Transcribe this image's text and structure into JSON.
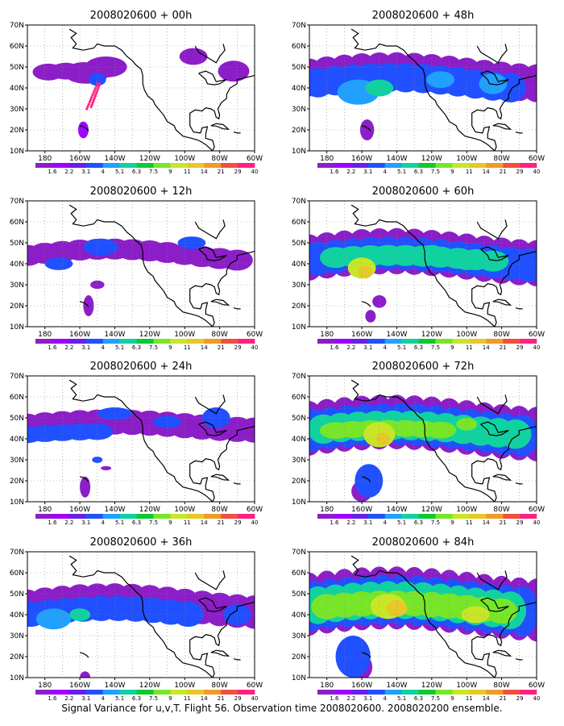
{
  "figure": {
    "caption": "Signal Variance for u,v,T. Flight 56. Observation time 2008020600. 2008020200 ensemble."
  },
  "colorbar": {
    "levels": [
      "1.6",
      "2.2",
      "3.1",
      "4",
      "5.1",
      "6.3",
      "7.5",
      "9",
      "11",
      "14",
      "21",
      "29",
      "40"
    ],
    "colors": [
      "#8c1ec8",
      "#a000ff",
      "#6a1ee6",
      "#2050ff",
      "#20a0ff",
      "#10d2a0",
      "#10c830",
      "#78e628",
      "#c8e628",
      "#e6c828",
      "#f09a28",
      "#f05040",
      "#ff2080"
    ]
  },
  "axes": {
    "lat_labels": [
      "70N",
      "60N",
      "50N",
      "40N",
      "30N",
      "20N",
      "10N"
    ],
    "lon_labels": [
      "180",
      "160W",
      "140W",
      "120W",
      "100W",
      "80W",
      "60W"
    ]
  },
  "panels": [
    {
      "title": "2008020600 + 00h",
      "lead_hours": 0
    },
    {
      "title": "2008020600 + 48h",
      "lead_hours": 48
    },
    {
      "title": "2008020600 + 12h",
      "lead_hours": 12
    },
    {
      "title": "2008020600 + 60h",
      "lead_hours": 60
    },
    {
      "title": "2008020600 + 24h",
      "lead_hours": 24
    },
    {
      "title": "2008020600 + 72h",
      "lead_hours": 72
    },
    {
      "title": "2008020600 + 36h",
      "lead_hours": 36
    },
    {
      "title": "2008020600 + 84h",
      "lead_hours": 84
    }
  ]
}
